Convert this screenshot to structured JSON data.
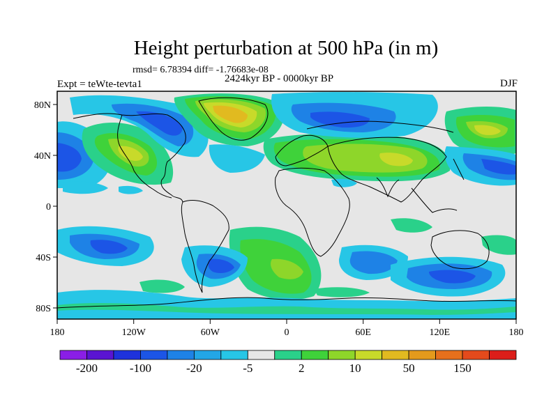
{
  "figure": {
    "title": "Height perturbation at 500 hPa (in m)",
    "stats": "rmsd= 6.78394 diff= -1.76683e-08",
    "period": "2424kyr BP - 0000kyr BP",
    "experiment": "Expt = teWte-tevta1",
    "season": "DJF"
  },
  "axes": {
    "x_ticks": [
      "180",
      "120W",
      "60W",
      "0",
      "60E",
      "120E",
      "180"
    ],
    "y_ticks": [
      "80N",
      "40N",
      "0",
      "40S",
      "80S"
    ]
  },
  "colorbar": {
    "colors": [
      "#8a1ee6",
      "#5a14d2",
      "#1e32dc",
      "#1c55e6",
      "#1e82e6",
      "#23a6e6",
      "#27c6e6",
      "#e6e6e6",
      "#2ad18a",
      "#3fd23a",
      "#8ed62a",
      "#c8da2a",
      "#e1ba20",
      "#e49a1c",
      "#e6701c",
      "#e44a1c",
      "#dc1e1a"
    ],
    "labels": [
      "-200",
      "-100",
      "-20",
      "-5",
      "2",
      "10",
      "50",
      "150"
    ]
  },
  "colors": {
    "background_field": "#e6e6e6",
    "coastline": "#000000"
  }
}
